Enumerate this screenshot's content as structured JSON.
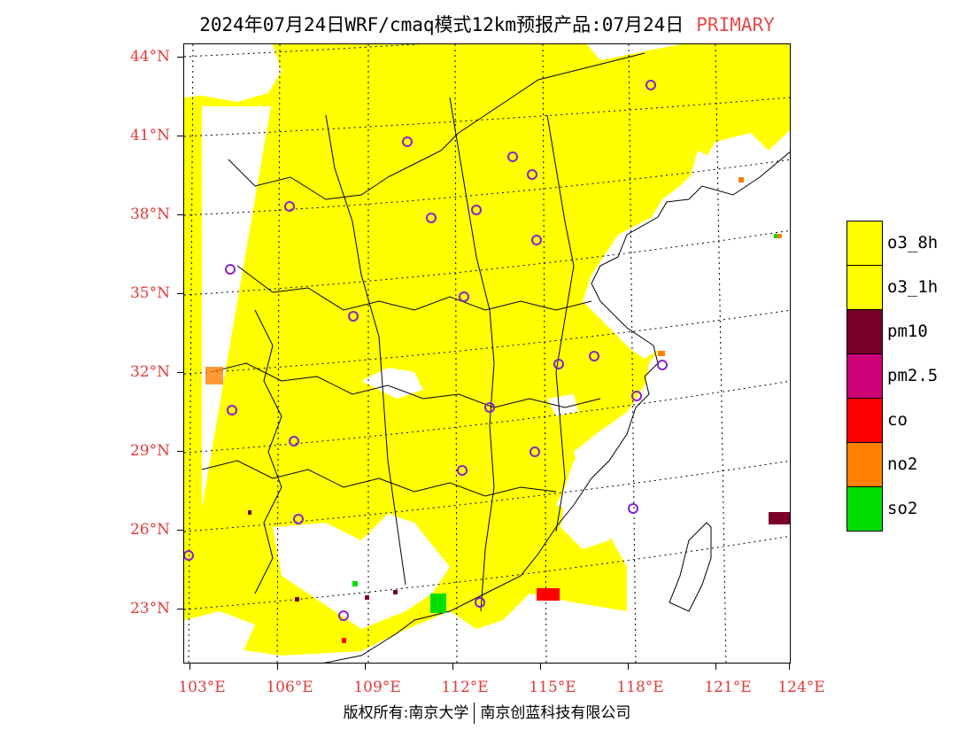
{
  "title": {
    "main": "2024年07月24日WRF/cmaq模式12km预报产品:07月24日",
    "tag": "PRIMARY",
    "tag_color": "#e84a4a"
  },
  "axes": {
    "lat_labels": [
      "44°N",
      "41°N",
      "38°N",
      "35°N",
      "32°N",
      "29°N",
      "26°N",
      "23°N"
    ],
    "lon_labels": [
      "103°E",
      "106°E",
      "109°E",
      "112°E",
      "115°E",
      "118°E",
      "121°E",
      "124°E"
    ],
    "label_color": "#e03a3a"
  },
  "legend": {
    "items": [
      {
        "label": "o3_8h",
        "color": "#ffff00"
      },
      {
        "label": "o3_1h",
        "color": "#ffff00"
      },
      {
        "label": "pm10",
        "color": "#7a0028"
      },
      {
        "label": "pm2.5",
        "color": "#cc0077"
      },
      {
        "label": "co",
        "color": "#ff0000"
      },
      {
        "label": "no2",
        "color": "#ff7f00"
      },
      {
        "label": "so2",
        "color": "#00dd00"
      }
    ]
  },
  "footer": {
    "left": "版权所有:南京大学",
    "right": "南京创蓝科技有限公司"
  },
  "map": {
    "primary_pollutant_fill": "#ffff00",
    "station_marker_color": "#8822cc",
    "graticule": "dotted"
  }
}
